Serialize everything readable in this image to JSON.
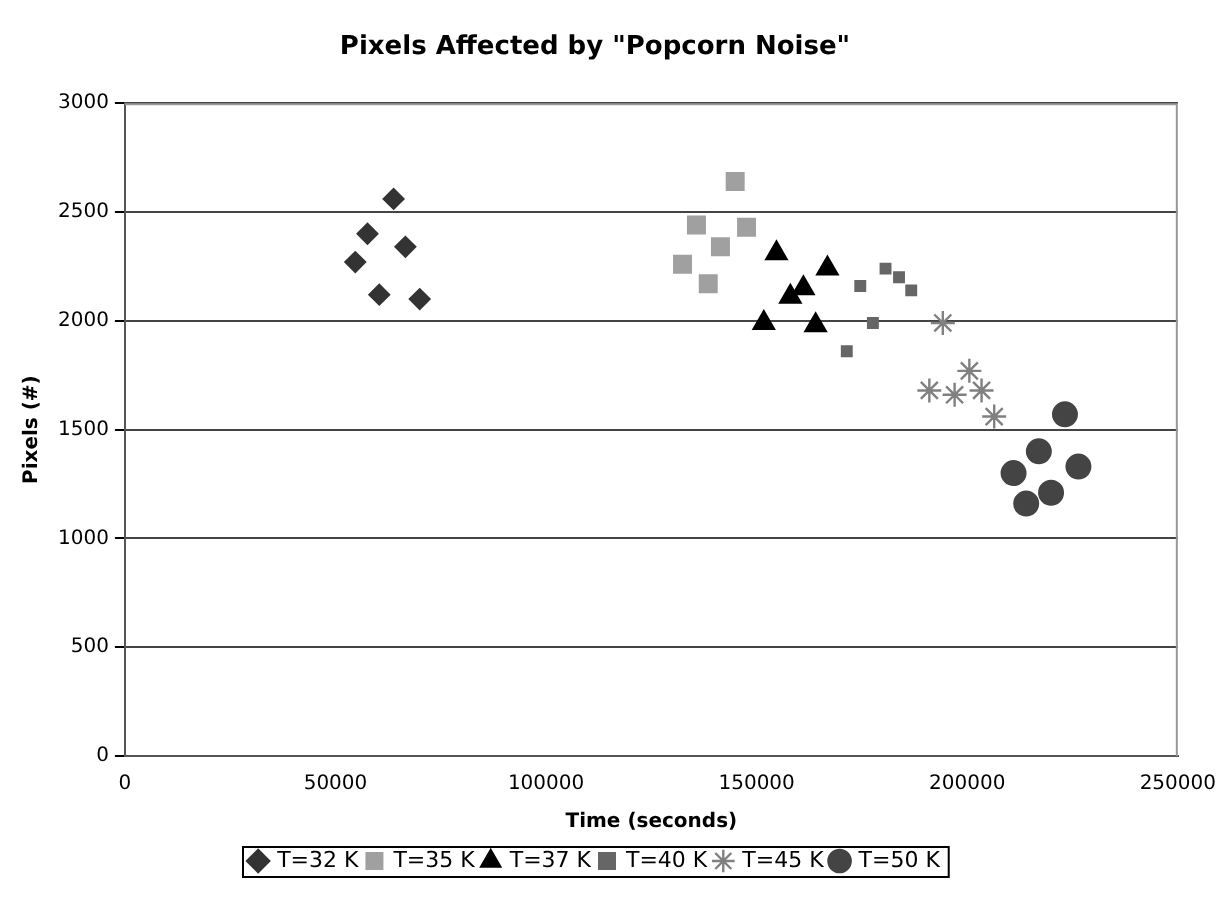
{
  "chart_data": {
    "type": "scatter",
    "title": "Pixels Affected by \"Popcorn Noise\"",
    "xlabel": "Time (seconds)",
    "ylabel": "Pixels (#)",
    "xlim": [
      0,
      250000
    ],
    "xticks": [
      0,
      50000,
      100000,
      150000,
      200000,
      250000
    ],
    "ylim": [
      0,
      3000
    ],
    "yticks": [
      0,
      500,
      1000,
      1500,
      2000,
      2500,
      3000
    ],
    "grid": "y",
    "legend": "bottom",
    "series": [
      {
        "name": "T=32 K",
        "color": "#333333",
        "marker": "diamond",
        "x": [
          54700,
          57600,
          60400,
          63800,
          66600,
          70000
        ],
        "values": [
          2270,
          2400,
          2120,
          2560,
          2340,
          2100
        ]
      },
      {
        "name": "T=35 K",
        "color": "#a0a0a0",
        "marker": "square",
        "x": [
          132400,
          135700,
          138500,
          141400,
          144900,
          147600
        ],
        "values": [
          2260,
          2440,
          2170,
          2340,
          2640,
          2430
        ]
      },
      {
        "name": "T=37 K",
        "color": "#000000",
        "marker": "triangle",
        "x": [
          151700,
          154700,
          158000,
          161100,
          164000,
          166800
        ],
        "values": [
          1990,
          2310,
          2110,
          2150,
          1980,
          2240
        ]
      },
      {
        "name": "T=40 K",
        "color": "#666666",
        "marker": "square",
        "x": [
          171400,
          174600,
          177600,
          180600,
          183800,
          186700
        ],
        "values": [
          1860,
          2160,
          1990,
          2240,
          2200,
          2140
        ]
      },
      {
        "name": "T=45 K",
        "color": "#808080",
        "marker": "cross",
        "x": [
          191000,
          194200,
          197000,
          200500,
          203400,
          206400
        ],
        "values": [
          1680,
          1990,
          1660,
          1770,
          1680,
          1560
        ]
      },
      {
        "name": "T=50 K",
        "color": "#444444",
        "marker": "circle",
        "x": [
          211000,
          214000,
          217000,
          219900,
          223200,
          226400
        ],
        "values": [
          1300,
          1160,
          1400,
          1210,
          1570,
          1330
        ]
      }
    ]
  }
}
